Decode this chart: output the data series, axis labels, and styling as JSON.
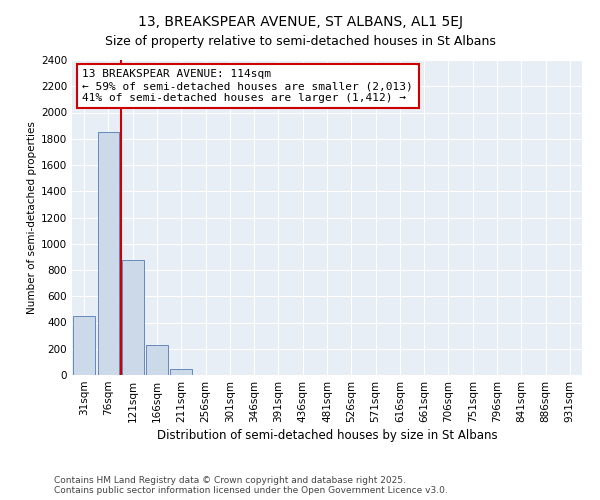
{
  "title": "13, BREAKSPEAR AVENUE, ST ALBANS, AL1 5EJ",
  "subtitle": "Size of property relative to semi-detached houses in St Albans",
  "xlabel": "Distribution of semi-detached houses by size in St Albans",
  "ylabel": "Number of semi-detached properties",
  "categories": [
    "31sqm",
    "76sqm",
    "121sqm",
    "166sqm",
    "211sqm",
    "256sqm",
    "301sqm",
    "346sqm",
    "391sqm",
    "436sqm",
    "481sqm",
    "526sqm",
    "571sqm",
    "616sqm",
    "661sqm",
    "706sqm",
    "751sqm",
    "796sqm",
    "841sqm",
    "886sqm",
    "931sqm"
  ],
  "values": [
    450,
    1850,
    875,
    230,
    45,
    0,
    0,
    0,
    0,
    0,
    0,
    0,
    0,
    0,
    0,
    0,
    0,
    0,
    0,
    0,
    0
  ],
  "bar_color": "#ccd9e8",
  "bar_edge_color": "#6688bb",
  "vline_color": "#cc0000",
  "annotation_text": "13 BREAKSPEAR AVENUE: 114sqm\n← 59% of semi-detached houses are smaller (2,013)\n41% of semi-detached houses are larger (1,412) →",
  "annotation_box_color": "#cc0000",
  "ylim": [
    0,
    2400
  ],
  "yticks": [
    0,
    200,
    400,
    600,
    800,
    1000,
    1200,
    1400,
    1600,
    1800,
    2000,
    2200,
    2400
  ],
  "background_color": "#e8eef5",
  "grid_color": "#ffffff",
  "footer_line1": "Contains HM Land Registry data © Crown copyright and database right 2025.",
  "footer_line2": "Contains public sector information licensed under the Open Government Licence v3.0.",
  "title_fontsize": 10,
  "subtitle_fontsize": 9,
  "xlabel_fontsize": 8.5,
  "ylabel_fontsize": 7.5,
  "tick_fontsize": 7.5,
  "annot_fontsize": 8,
  "footer_fontsize": 6.5
}
